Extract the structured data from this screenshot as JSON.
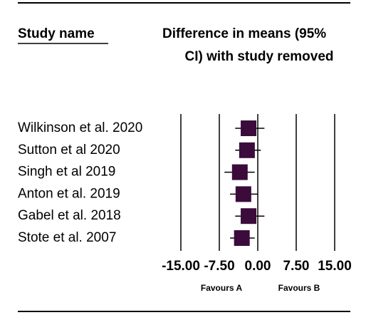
{
  "chart_data": {
    "type": "forest",
    "column_headers": [
      "Study name",
      "Difference in means (95%",
      "CI) with study removed"
    ],
    "categories": [
      "Wilkinson et al. 2020",
      "Sutton et al 2020",
      "Singh et al 2019",
      "Anton et al. 2019",
      "Gabel et al. 2018",
      "Stote et al. 2007"
    ],
    "values": [
      -1.8,
      -2.1,
      -3.5,
      -2.8,
      -1.8,
      -3.1
    ],
    "ci_lower": [
      -4.4,
      -4.4,
      -6.5,
      -5.4,
      -4.4,
      -5.4
    ],
    "ci_upper": [
      1.3,
      0.6,
      -0.6,
      0.0,
      1.3,
      -0.6
    ],
    "color": "#3b0b3b",
    "xlim": [
      -15,
      15
    ],
    "xticks": [
      {
        "value": -15,
        "label": "-15.00"
      },
      {
        "value": -7.5,
        "label": "-7.50"
      },
      {
        "value": 0,
        "label": "0.00"
      },
      {
        "value": 7.5,
        "label": "7.50"
      },
      {
        "value": 15,
        "label": "15.00"
      }
    ],
    "grid": true,
    "favours": [
      "Favours A",
      "Favours B"
    ]
  }
}
